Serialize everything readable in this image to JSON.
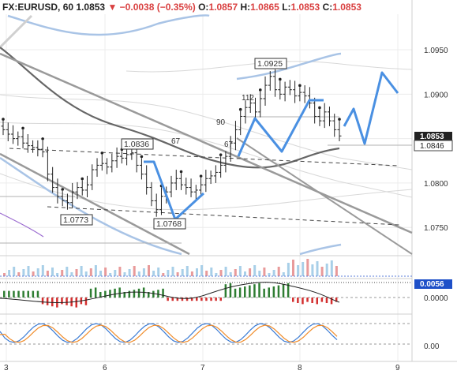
{
  "header": {
    "symbol": "FX:EURUSD",
    "interval": "60",
    "last": "1.0853",
    "arrow": "▼",
    "change": "−0.0038 (−0.35%)",
    "open_label": "O:",
    "open": "1.0857",
    "high_label": "H:",
    "high": "1.0865",
    "low_label": "L:",
    "low": "1.0853",
    "close_label": "C:",
    "close": "1.0853"
  },
  "colors": {
    "bull": "#2e7d32",
    "bear": "#d32f2f",
    "candle": "#222222",
    "forecast": "#4a90e2",
    "channel": "#9a9a9a",
    "ma": "#666666",
    "band": "#a9c4e6",
    "price_tag_bg": "#222222",
    "macd_tag_bg": "#1e50c8"
  },
  "chart_data": {
    "type": "line",
    "title": "FX:EURUSD, 60",
    "x_ticks": [
      "3",
      "6",
      "7",
      "8",
      "9"
    ],
    "y_ticks": [
      "1.0950",
      "1.0900",
      "1.0850",
      "1.0800",
      "1.0750"
    ],
    "ylim": [
      1.072,
      1.099
    ],
    "series": [
      {
        "type": "ohlc",
        "close": [
          1.086,
          1.0855,
          1.085,
          1.0852,
          1.0845,
          1.0842,
          1.084,
          1.0838,
          1.0835,
          1.081,
          1.0795,
          1.0785,
          1.078,
          1.0778,
          1.079,
          1.0795,
          1.0792,
          1.0798,
          1.0815,
          1.082,
          1.0822,
          1.0818,
          1.0825,
          1.083,
          1.0828,
          1.0832,
          1.0834,
          1.082,
          1.081,
          1.0795,
          1.078,
          1.077,
          1.0785,
          1.079,
          1.08,
          1.0805,
          1.0798,
          1.0795,
          1.079,
          1.0792,
          1.0798,
          1.0805,
          1.0808,
          1.0812,
          1.082,
          1.083,
          1.0845,
          1.086,
          1.0875,
          1.0885,
          1.089,
          1.088,
          1.0895,
          1.091,
          1.092,
          1.0905,
          1.09,
          1.0908,
          1.0905,
          1.0898,
          1.0902,
          1.0898,
          1.089,
          1.0875,
          1.087,
          1.088,
          1.087,
          1.086,
          1.0853
        ]
      }
    ],
    "annotations": [
      {
        "text": "1.0925"
      },
      {
        "text": "1.0836"
      },
      {
        "text": "1.0773"
      },
      {
        "text": "1.0768"
      },
      {
        "text": "112"
      },
      {
        "text": "90"
      },
      {
        "text": "67"
      },
      {
        "text": "67"
      }
    ],
    "price_tags": {
      "last": "1.0853",
      "level": "1.0846"
    },
    "macd_tag": "0.0056",
    "macd_ticks": [
      "0.0000"
    ],
    "stoch_ticks": [
      "0.00"
    ],
    "grid": true
  }
}
